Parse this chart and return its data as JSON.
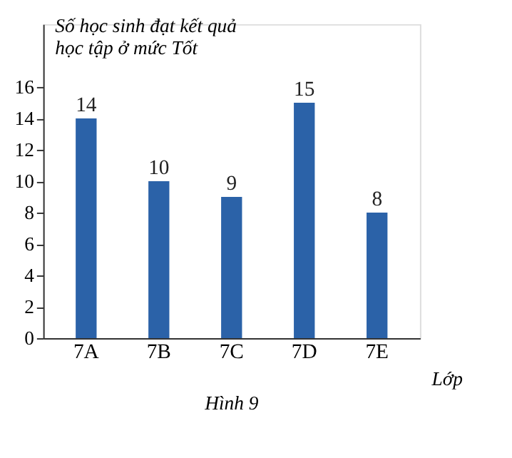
{
  "chart_data": {
    "type": "bar",
    "ylabel": "Số học sinh đạt kết quả\nhọc tập ở mức Tốt",
    "xlabel": "Lớp",
    "annotations": [
      "Hình 9"
    ],
    "categories": [
      "7A",
      "7B",
      "7C",
      "7D",
      "7E"
    ],
    "values": [
      14,
      10,
      9,
      15,
      8
    ],
    "color": "#2b62a8",
    "ylim": [
      0,
      20
    ],
    "yticks": [
      0,
      2,
      4,
      6,
      8,
      10,
      12,
      14,
      16
    ],
    "data_labels": true,
    "grid": false
  }
}
